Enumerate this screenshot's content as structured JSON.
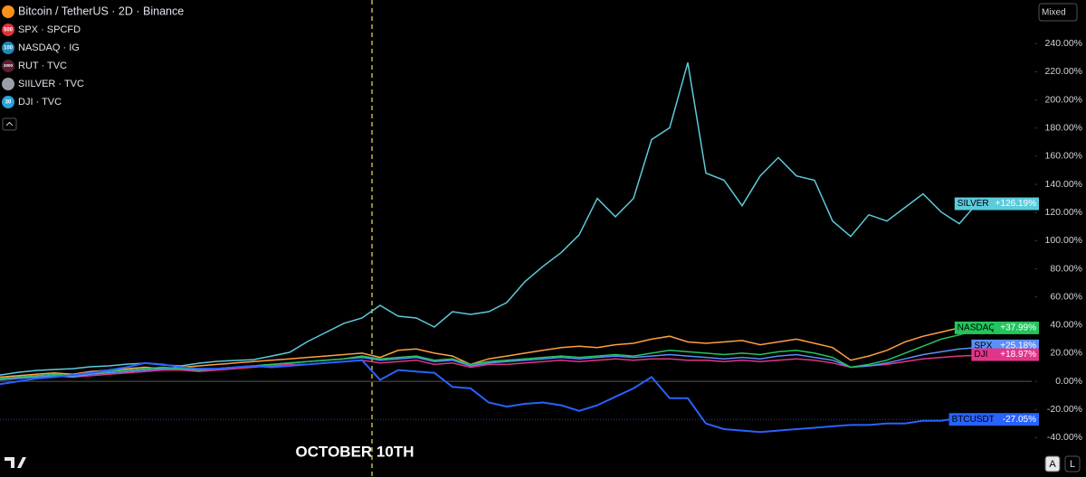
{
  "chart_data": {
    "type": "line",
    "annotation": "OCTOBER 10TH",
    "ylim": [
      -68,
      271
    ],
    "yticks": [
      {
        "value": -40,
        "label": "-40.00%"
      },
      {
        "value": -20,
        "label": "-20.00%"
      },
      {
        "value": 0,
        "label": "0.00%"
      },
      {
        "value": 20,
        "label": "20.00%"
      },
      {
        "value": 40,
        "label": "40.00%"
      },
      {
        "value": 60,
        "label": "60.00%"
      },
      {
        "value": 80,
        "label": "80.00%"
      },
      {
        "value": 100,
        "label": "100.00%"
      },
      {
        "value": 120,
        "label": "120.00%"
      },
      {
        "value": 140,
        "label": "140.00%"
      },
      {
        "value": 160,
        "label": "160.00%"
      },
      {
        "value": 180,
        "label": "180.00%"
      },
      {
        "value": 200,
        "label": "200.00%"
      },
      {
        "value": 220,
        "label": "220.00%"
      },
      {
        "value": 240,
        "label": "240.00%"
      }
    ],
    "grid": false,
    "scale_mode": "Mixed",
    "buttons": [
      "A",
      "L"
    ],
    "series": [
      {
        "name": "Bitcoin / TetherUS · 2D · Binance",
        "tag_name": "BTCUSDT",
        "tag": "-27.05%",
        "color": "#2962ff",
        "icon_color": "#f7931a",
        "values": [
          -2,
          0,
          2,
          3,
          4.5,
          6,
          8,
          10,
          13,
          12,
          10,
          9,
          9,
          10,
          11,
          10,
          11,
          12,
          13,
          14,
          15,
          1,
          8,
          7,
          6,
          -4,
          -5,
          -15,
          -18,
          -16,
          -15,
          -17,
          -21,
          -17,
          -11,
          -5,
          3,
          -12,
          -12,
          -30,
          -34,
          -35,
          -36,
          -35,
          -34,
          -33,
          -32,
          -31,
          -31,
          -30,
          -30,
          -28,
          -28,
          -26,
          -25,
          -27.05
        ]
      },
      {
        "name": "SPX · SPCFD",
        "icon": "500",
        "tag_name": "SPX",
        "tag": "+25.18%",
        "color": "#5b8ff9",
        "icon_color": "#e0303a",
        "values": [
          1,
          2,
          3,
          4,
          3,
          5,
          6,
          7,
          8,
          9,
          9,
          8,
          9,
          10,
          11,
          12,
          13,
          14,
          15,
          16,
          17,
          15,
          16,
          17,
          14,
          15,
          11,
          13,
          14,
          15,
          16,
          17,
          16,
          17,
          18,
          17,
          18,
          19,
          18,
          17,
          16,
          17,
          16,
          18,
          19,
          17,
          15,
          10,
          11,
          13,
          16,
          19,
          21,
          23,
          24,
          25.18
        ]
      },
      {
        "name": "NASDAQ · IG",
        "icon": "100",
        "tag_name": "NASDAQ",
        "tag": "+37.99%",
        "color": "#22c55e",
        "icon_color": "#1e88b8",
        "values": [
          2,
          3,
          4,
          5,
          4,
          6,
          7,
          8,
          9,
          10,
          9,
          8,
          9,
          10,
          11,
          12,
          13,
          14,
          15,
          16,
          18,
          16,
          17,
          18,
          15,
          16,
          12,
          14,
          15,
          16,
          17,
          18,
          17,
          18,
          19,
          18,
          20,
          22,
          21,
          20,
          19,
          20,
          19,
          21,
          22,
          20,
          17,
          10,
          12,
          15,
          20,
          25,
          30,
          33,
          37,
          37.99
        ]
      },
      {
        "name": "RUT · TVC",
        "icon": "2000",
        "color": "#ffa040",
        "icon_color": "#5a1e32",
        "values": [
          3,
          4,
          5,
          6,
          5,
          7,
          8,
          9,
          10,
          9,
          10,
          11,
          12,
          13,
          14,
          15,
          16,
          17,
          18,
          19,
          20,
          17,
          22,
          23,
          20,
          18,
          12,
          16,
          18,
          20,
          22,
          24,
          25,
          24,
          26,
          27,
          30,
          32,
          28,
          27,
          28,
          29,
          26,
          28,
          30,
          27,
          24,
          15,
          18,
          22,
          28,
          32,
          35,
          38,
          37,
          38
        ]
      },
      {
        "name": "SIILVER · TVC",
        "tag_name": "SILVER",
        "tag": "+126.19%",
        "color": "#5ccbdc",
        "icon_color": "#9aa0a8",
        "values": [
          4.5,
          6.4,
          7.7,
          8.4,
          9,
          10.3,
          11,
          12.2,
          12.9,
          11.6,
          11,
          12.9,
          14.2,
          14.8,
          15.4,
          18,
          20.6,
          28.3,
          34.7,
          41.2,
          45,
          54,
          46.3,
          45,
          38.6,
          49.5,
          47.6,
          49.5,
          56,
          70.8,
          81.7,
          91.4,
          104.2,
          130,
          117,
          130,
          171.8,
          180.2,
          226.5,
          148,
          142.9,
          124.8,
          146,
          159,
          146,
          142.9,
          113.9,
          103,
          118.4,
          113.9,
          123.6,
          133.2,
          120.3,
          112,
          126.8,
          126.19
        ]
      },
      {
        "name": "DJI · TVC",
        "icon": "30",
        "tag_name": "DJI",
        "tag": "+18.97%",
        "color": "#e0368a",
        "icon_color": "#2aa3d8",
        "values": [
          2,
          3,
          3,
          4,
          3,
          4,
          5,
          6,
          7,
          8,
          8,
          7,
          8,
          9,
          10,
          11,
          12,
          12,
          13,
          14,
          15,
          13,
          14,
          15,
          12,
          13,
          10,
          12,
          12,
          13,
          14,
          15,
          14,
          15,
          16,
          15,
          16,
          16,
          15,
          15,
          14,
          15,
          14,
          15,
          16,
          15,
          13,
          10,
          11,
          12,
          14,
          16,
          17,
          18,
          18.5,
          18.97
        ]
      }
    ]
  }
}
